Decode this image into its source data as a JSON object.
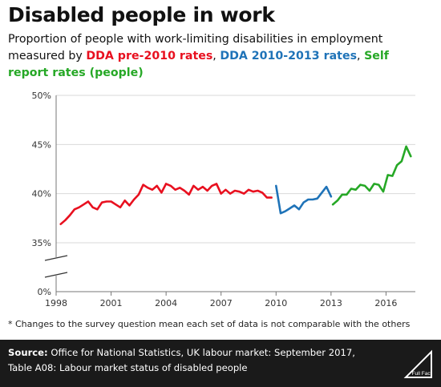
{
  "header": {
    "title": "Disabled people in work",
    "subtitle_prefix": "Proportion of people with work-limiting disabilities in employment measured by ",
    "series1": "DDA pre-2010 rates",
    "sep1": ", ",
    "series2": "DDA 2010-2013 rates",
    "sep2": ", ",
    "series3": "Self report rates (people)"
  },
  "footnote": "* Changes to the survey question mean each set of data is not comparable with the others",
  "source": {
    "label": "Source:",
    "text": " Office for National Statistics, UK labour market: September 2017, Table A08: Labour market status of disabled people"
  },
  "logo": {
    "text": "Full Fact"
  },
  "colors": {
    "dda_pre": "#e8101f",
    "dda_mid": "#1f73b8",
    "self": "#26a826",
    "grid": "#d9d9d9",
    "axis": "#777777"
  },
  "chart_data": {
    "type": "line",
    "title": "Disabled people in work",
    "xlabel": "",
    "ylabel": "",
    "xlim": [
      1998,
      2017.6
    ],
    "ylim": [
      35,
      50
    ],
    "y_ticks": [
      0,
      35,
      40,
      45,
      50
    ],
    "y_tick_labels": [
      "0%",
      "35%",
      "40%",
      "45%",
      "50%"
    ],
    "y_axis_break": true,
    "x_ticks": [
      1998,
      2001,
      2004,
      2007,
      2010,
      2013,
      2016
    ],
    "x_tick_labels": [
      "1998",
      "2001",
      "2004",
      "2007",
      "2010",
      "2013",
      "2016"
    ],
    "grid": true,
    "legend": "in subtitle",
    "series": [
      {
        "name": "DDA pre-2010 rates",
        "color": "#e8101f",
        "x": [
          1998.25,
          1998.5,
          1998.75,
          1999,
          1999.25,
          1999.5,
          1999.75,
          2000,
          2000.25,
          2000.5,
          2000.75,
          2001,
          2001.25,
          2001.5,
          2001.75,
          2002,
          2002.25,
          2002.5,
          2002.75,
          2003,
          2003.25,
          2003.5,
          2003.75,
          2004,
          2004.25,
          2004.5,
          2004.75,
          2005,
          2005.25,
          2005.5,
          2005.75,
          2006,
          2006.25,
          2006.5,
          2006.75,
          2007,
          2007.25,
          2007.5,
          2007.75,
          2008,
          2008.25,
          2008.5,
          2008.75,
          2009,
          2009.25,
          2009.5,
          2009.75
        ],
        "y": [
          36.9,
          37.3,
          37.8,
          38.4,
          38.6,
          38.9,
          39.2,
          38.6,
          38.4,
          39.1,
          39.2,
          39.2,
          38.9,
          38.6,
          39.3,
          38.8,
          39.4,
          39.9,
          40.9,
          40.6,
          40.4,
          40.8,
          40.1,
          41.0,
          40.8,
          40.4,
          40.6,
          40.3,
          39.9,
          40.8,
          40.4,
          40.7,
          40.3,
          40.8,
          41.0,
          40.0,
          40.4,
          40.0,
          40.3,
          40.2,
          40.0,
          40.4,
          40.2,
          40.3,
          40.1,
          39.6,
          39.6
        ]
      },
      {
        "name": "DDA 2010-2013 rates",
        "color": "#1f73b8",
        "x": [
          2010,
          2010.25,
          2010.5,
          2010.75,
          2011,
          2011.25,
          2011.5,
          2011.75,
          2012,
          2012.25,
          2012.5,
          2012.75,
          2013
        ],
        "y": [
          40.8,
          38.0,
          38.2,
          38.5,
          38.8,
          38.4,
          39.1,
          39.4,
          39.4,
          39.5,
          40.1,
          40.7,
          39.7
        ]
      },
      {
        "name": "Self report rates (people)",
        "color": "#26a826",
        "x": [
          2013.1,
          2013.35,
          2013.6,
          2013.85,
          2014.1,
          2014.35,
          2014.6,
          2014.85,
          2015.1,
          2015.35,
          2015.6,
          2015.85,
          2016.1,
          2016.35,
          2016.6,
          2016.85,
          2017.1,
          2017.35
        ],
        "y": [
          38.9,
          39.3,
          39.9,
          39.9,
          40.5,
          40.4,
          40.9,
          40.8,
          40.3,
          41.0,
          40.9,
          40.2,
          41.9,
          41.8,
          42.9,
          43.3,
          44.8,
          43.8
        ]
      }
    ]
  }
}
